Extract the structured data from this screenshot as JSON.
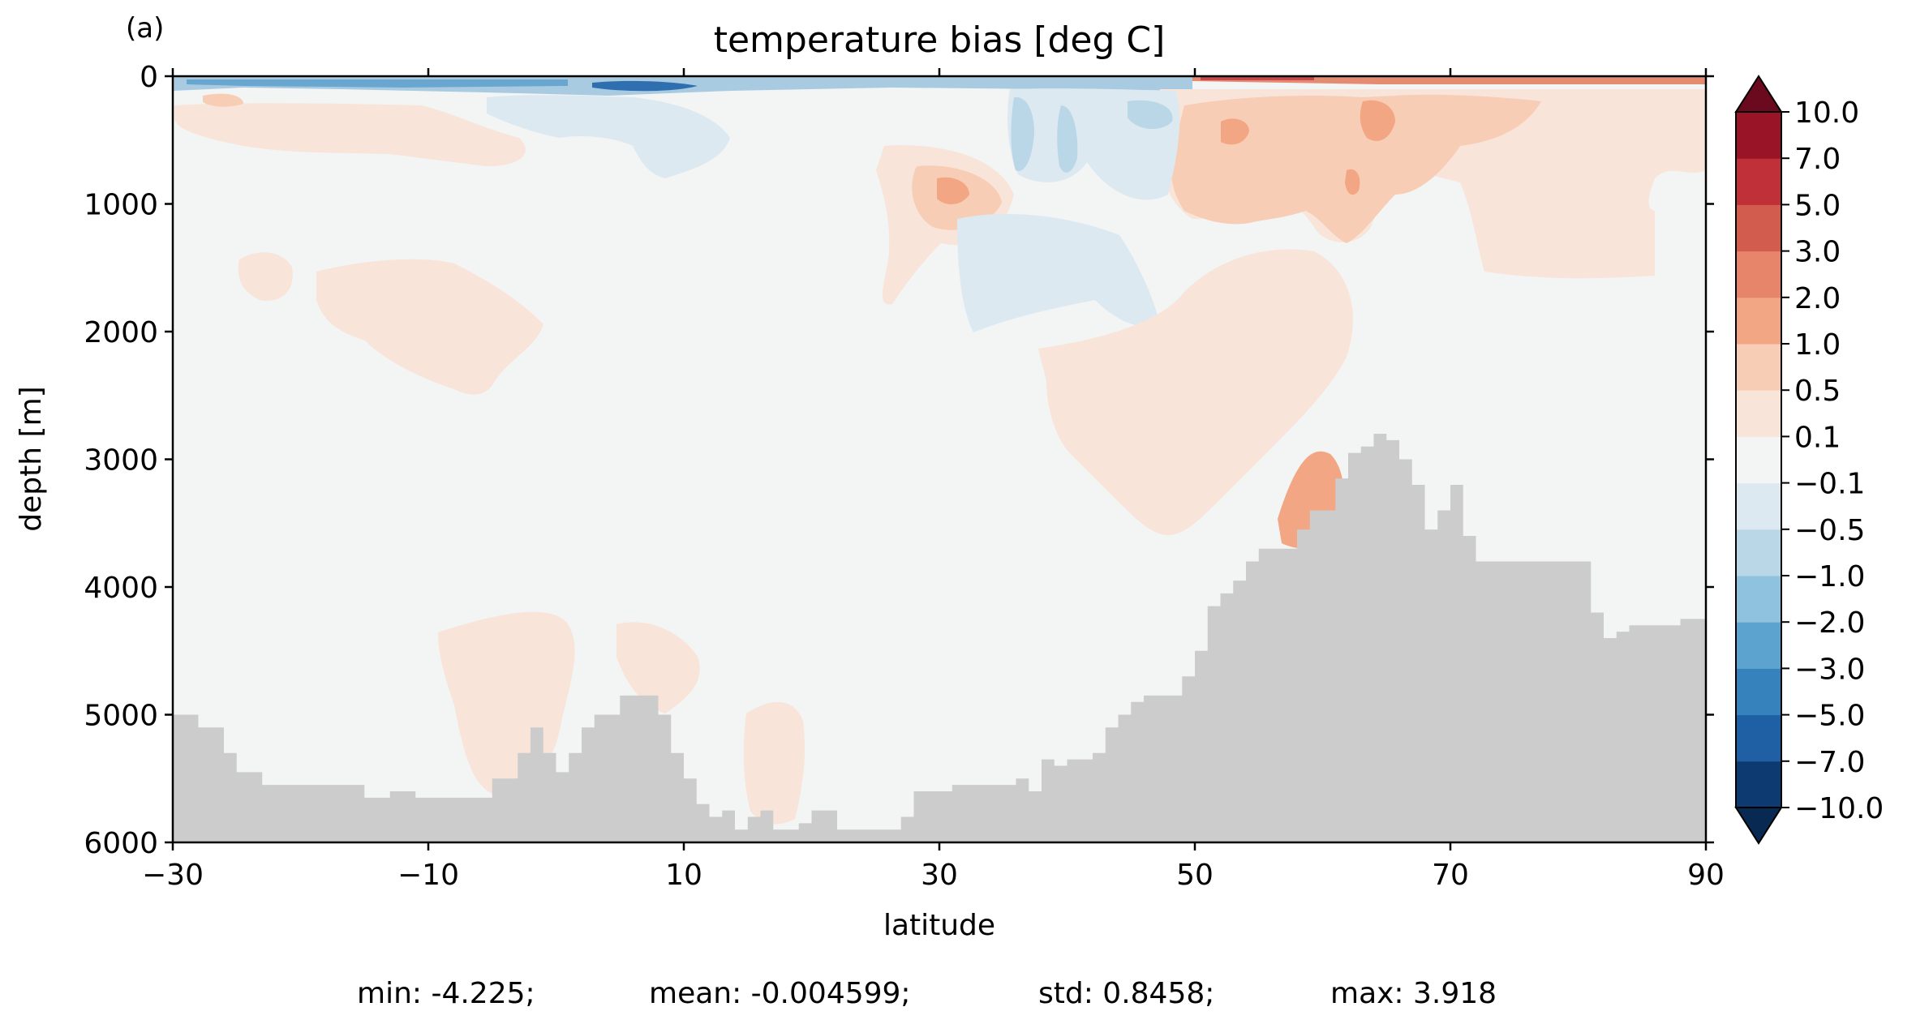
{
  "chart_data": {
    "type": "heatmap",
    "panel_label": "(a)",
    "title": "temperature bias [deg C]",
    "xlabel": "latitude",
    "ylabel": "depth [m]",
    "xlim": [
      -30,
      90
    ],
    "ylim": [
      6000,
      0
    ],
    "y_inverted": true,
    "xticks": [
      -30,
      -10,
      10,
      30,
      50,
      70,
      90
    ],
    "xtick_labels": [
      "−30",
      "−10",
      "10",
      "30",
      "50",
      "70",
      "90"
    ],
    "yticks": [
      0,
      1000,
      2000,
      3000,
      4000,
      5000,
      6000
    ],
    "ytick_labels": [
      "0",
      "1000",
      "2000",
      "3000",
      "4000",
      "5000",
      "6000"
    ],
    "colorbar": {
      "levels": [
        -10.0,
        -7.0,
        -5.0,
        -3.0,
        -2.0,
        -1.0,
        -0.5,
        -0.1,
        0.1,
        0.5,
        1.0,
        2.0,
        3.0,
        5.0,
        7.0,
        10.0
      ],
      "tick_labels": [
        "−10.0",
        "−7.0",
        "−5.0",
        "−3.0",
        "−2.0",
        "−1.0",
        "−0.5",
        "−0.1",
        "0.1",
        "0.5",
        "1.0",
        "2.0",
        "3.0",
        "5.0",
        "7.0",
        "10.0"
      ],
      "colors": [
        "#0d3a70",
        "#1f5fa3",
        "#3682bd",
        "#5ca4cf",
        "#8ec2de",
        "#bad7e8",
        "#dde9f1",
        "#f3f4f4",
        "#f8e4d8",
        "#f8cdb5",
        "#f3a684",
        "#e7856b",
        "#d25d4e",
        "#bf3038",
        "#991427"
      ],
      "under_color": "#082a52",
      "over_color": "#6b0a1f",
      "extend": "both"
    },
    "land_color": "#cccccc",
    "bathymetry": [
      [
        -30,
        5000
      ],
      [
        -29,
        5000
      ],
      [
        -28,
        5100
      ],
      [
        -26,
        5300
      ],
      [
        -25,
        5450
      ],
      [
        -23,
        5550
      ],
      [
        -20,
        5550
      ],
      [
        -17,
        5550
      ],
      [
        -15,
        5650
      ],
      [
        -13,
        5600
      ],
      [
        -11,
        5650
      ],
      [
        -9,
        5650
      ],
      [
        -7,
        5650
      ],
      [
        -5,
        5500
      ],
      [
        -3,
        5300
      ],
      [
        -2,
        5100
      ],
      [
        -1,
        5300
      ],
      [
        0,
        5450
      ],
      [
        1,
        5300
      ],
      [
        2,
        5100
      ],
      [
        3,
        5000
      ],
      [
        5,
        4850
      ],
      [
        7,
        4850
      ],
      [
        8,
        5000
      ],
      [
        9,
        5300
      ],
      [
        10,
        5500
      ],
      [
        11,
        5700
      ],
      [
        12,
        5800
      ],
      [
        13,
        5750
      ],
      [
        14,
        5900
      ],
      [
        15,
        5800
      ],
      [
        16,
        5750
      ],
      [
        17,
        5900
      ],
      [
        19,
        5850
      ],
      [
        20,
        5750
      ],
      [
        22,
        5900
      ],
      [
        24,
        5900
      ],
      [
        26,
        5900
      ],
      [
        27,
        5800
      ],
      [
        28,
        5600
      ],
      [
        31,
        5550
      ],
      [
        34,
        5550
      ],
      [
        36,
        5500
      ],
      [
        37,
        5600
      ],
      [
        38,
        5350
      ],
      [
        39,
        5400
      ],
      [
        40,
        5350
      ],
      [
        42,
        5300
      ],
      [
        43,
        5100
      ],
      [
        44,
        5000
      ],
      [
        45,
        4900
      ],
      [
        46,
        4850
      ],
      [
        47,
        4850
      ],
      [
        48,
        4850
      ],
      [
        49,
        4700
      ],
      [
        50,
        4500
      ],
      [
        51,
        4150
      ],
      [
        52,
        4050
      ],
      [
        53,
        3950
      ],
      [
        54,
        3800
      ],
      [
        55,
        3700
      ],
      [
        57,
        3700
      ],
      [
        58,
        3550
      ],
      [
        59,
        3400
      ],
      [
        60,
        3400
      ],
      [
        61,
        3150
      ],
      [
        62,
        2950
      ],
      [
        63,
        2900
      ],
      [
        64,
        2800
      ],
      [
        65,
        2850
      ],
      [
        66,
        3000
      ],
      [
        67,
        3200
      ],
      [
        68,
        3550
      ],
      [
        69,
        3400
      ],
      [
        70,
        3200
      ],
      [
        71,
        3600
      ],
      [
        72,
        3800
      ],
      [
        74,
        3800
      ],
      [
        76,
        3800
      ],
      [
        78,
        3800
      ],
      [
        80,
        3800
      ],
      [
        81,
        4200
      ],
      [
        82,
        4400
      ],
      [
        83,
        4350
      ],
      [
        84,
        4300
      ],
      [
        86,
        4300
      ],
      [
        88,
        4250
      ],
      [
        90,
        4250
      ]
    ],
    "stats": {
      "min": "min: -4.225;",
      "mean": "mean: -0.004599;",
      "std": "std: 0.8458;",
      "max": "max: 3.918"
    }
  }
}
